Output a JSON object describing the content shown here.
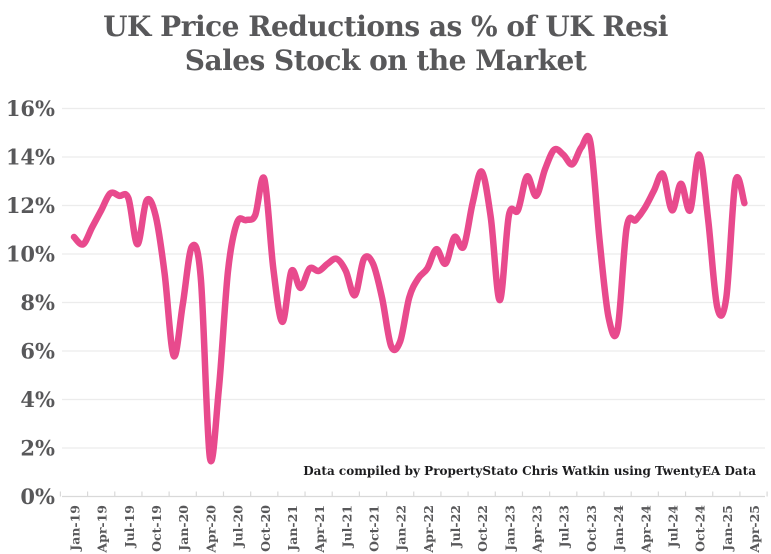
{
  "title": {
    "line1": "UK Price Reductions as % of UK Resi",
    "line2": "Sales Stock on the Market"
  },
  "annotation": {
    "credit": "Data compiled by PropertyStato Chris Watkin using TwentyEA Data"
  },
  "colors": {
    "line": "#e84a8d",
    "title_text": "#58585a",
    "axis_text": "#58585a",
    "gridline": "#ececec",
    "baseline": "#d9d9d9",
    "tick": "#d9d9d9",
    "background": "#ffffff",
    "credit_text": "#1d1d1f"
  },
  "chart_data": {
    "type": "line",
    "title": "UK Price Reductions as % of UK Resi Sales Stock on the Market",
    "xlabel": "",
    "ylabel": "",
    "legend": "none",
    "grid": "horizontal",
    "ylim": [
      0,
      16
    ],
    "y_ticks": [
      0,
      2,
      4,
      6,
      8,
      10,
      12,
      14,
      16
    ],
    "y_tick_suffix": "%",
    "x_tick_labels": [
      "Jan-19",
      "Apr-19",
      "Jul-19",
      "Oct-19",
      "Jan-20",
      "Apr-20",
      "Jul-20",
      "Oct-20",
      "Jan-21",
      "Apr-21",
      "Jul-21",
      "Oct-21",
      "Jan-22",
      "Apr-22",
      "Jul-22",
      "Oct-22",
      "Jan-23",
      "Apr-23",
      "Jul-23",
      "Oct-23",
      "Jan-24",
      "Apr-24",
      "Jul-24",
      "Oct-24",
      "Jan-25",
      "Apr-25"
    ],
    "x": [
      "Jan-19",
      "Feb-19",
      "Mar-19",
      "Apr-19",
      "May-19",
      "Jun-19",
      "Jul-19",
      "Aug-19",
      "Sep-19",
      "Oct-19",
      "Nov-19",
      "Dec-19",
      "Jan-20",
      "Feb-20",
      "Mar-20",
      "Apr-20",
      "May-20",
      "Jun-20",
      "Jul-20",
      "Aug-20",
      "Sep-20",
      "Oct-20",
      "Nov-20",
      "Dec-20",
      "Jan-21",
      "Feb-21",
      "Mar-21",
      "Apr-21",
      "May-21",
      "Jun-21",
      "Jul-21",
      "Aug-21",
      "Sep-21",
      "Oct-21",
      "Nov-21",
      "Dec-21",
      "Jan-22",
      "Feb-22",
      "Mar-22",
      "Apr-22",
      "May-22",
      "Jun-22",
      "Jul-22",
      "Aug-22",
      "Sep-22",
      "Oct-22",
      "Nov-22",
      "Dec-22",
      "Jan-23",
      "Feb-23",
      "Mar-23",
      "Apr-23",
      "May-23",
      "Jun-23",
      "Jul-23",
      "Aug-23",
      "Sep-23",
      "Oct-23",
      "Nov-23",
      "Dec-23",
      "Jan-24",
      "Feb-24",
      "Mar-24",
      "Apr-24",
      "May-24",
      "Jun-24",
      "Jul-24",
      "Aug-24",
      "Sep-24",
      "Oct-24",
      "Nov-24",
      "Dec-24",
      "Jan-25",
      "Feb-25",
      "Mar-25"
    ],
    "values": [
      10.7,
      10.4,
      11.1,
      11.8,
      12.5,
      12.4,
      12.3,
      10.4,
      12.2,
      11.6,
      9.2,
      5.8,
      7.9,
      10.3,
      9.0,
      1.6,
      4.5,
      9.3,
      11.3,
      11.4,
      11.6,
      13.1,
      9.4,
      7.2,
      9.3,
      8.6,
      9.4,
      9.3,
      9.6,
      9.8,
      9.3,
      8.3,
      9.8,
      9.6,
      8.2,
      6.2,
      6.4,
      8.2,
      9.0,
      9.4,
      10.2,
      9.6,
      10.7,
      10.3,
      12.1,
      13.4,
      11.5,
      8.1,
      11.6,
      11.8,
      13.2,
      12.4,
      13.5,
      14.3,
      14.1,
      13.7,
      14.4,
      14.6,
      10.6,
      7.4,
      6.9,
      11.1,
      11.4,
      11.9,
      12.6,
      13.3,
      11.8,
      12.9,
      11.8,
      14.1,
      11.4,
      7.8,
      8.2,
      13.0,
      12.1
    ]
  }
}
